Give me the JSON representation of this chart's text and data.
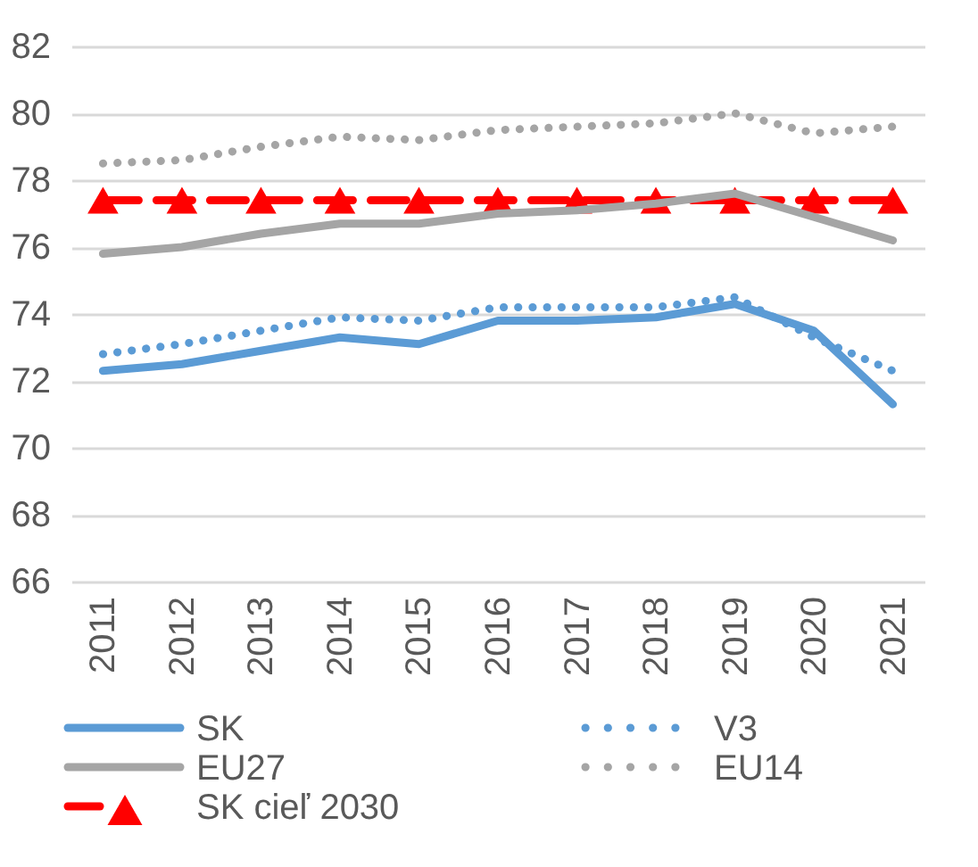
{
  "chart_data": {
    "type": "line",
    "categories": [
      "2011",
      "2012",
      "2013",
      "2014",
      "2015",
      "2016",
      "2017",
      "2018",
      "2019",
      "2020",
      "2021"
    ],
    "series": [
      {
        "name": "SK",
        "color": "#5b9bd5",
        "line_style": "solid",
        "values": [
          72.3,
          72.5,
          72.9,
          73.3,
          73.1,
          73.8,
          73.8,
          73.9,
          74.3,
          73.5,
          71.3
        ]
      },
      {
        "name": "V3",
        "color": "#5b9bd5",
        "line_style": "dotted",
        "values": [
          72.8,
          73.1,
          73.5,
          73.9,
          73.8,
          74.2,
          74.2,
          74.2,
          74.5,
          73.3,
          72.3
        ]
      },
      {
        "name": "EU27",
        "color": "#a5a5a5",
        "line_style": "solid",
        "values": [
          75.8,
          76.0,
          76.4,
          76.7,
          76.7,
          77.0,
          77.1,
          77.3,
          77.6,
          76.9,
          76.2
        ]
      },
      {
        "name": "EU14",
        "color": "#a5a5a5",
        "line_style": "dotted",
        "values": [
          78.5,
          78.6,
          79.0,
          79.3,
          79.2,
          79.5,
          79.6,
          79.7,
          80.0,
          79.4,
          79.6
        ]
      },
      {
        "name": "SK cieľ 2030",
        "color": "#ff0000",
        "line_style": "dashed",
        "marker": "triangle",
        "values": [
          77.4,
          77.4,
          77.4,
          77.4,
          77.4,
          77.4,
          77.4,
          77.4,
          77.4,
          77.4,
          77.4
        ]
      }
    ],
    "ylim": [
      66,
      82
    ],
    "yticks": [
      66,
      68,
      70,
      72,
      74,
      76,
      78,
      80,
      82
    ],
    "grid": "y",
    "legend": "bottom"
  }
}
